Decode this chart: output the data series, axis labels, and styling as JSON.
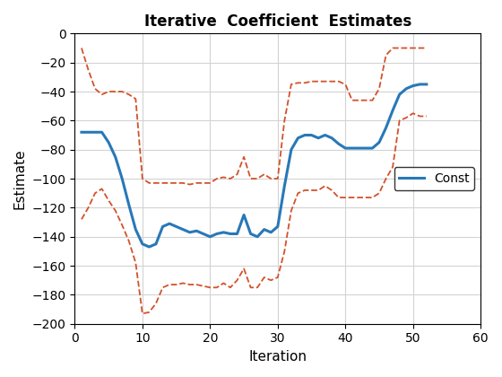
{
  "title": "Iterative  Coefficient  Estimates",
  "xlabel": "Iteration",
  "ylabel": "Estimate",
  "xlim": [
    0,
    60
  ],
  "ylim": [
    -200,
    0
  ],
  "xticks": [
    0,
    10,
    20,
    30,
    40,
    50,
    60
  ],
  "yticks": [
    0,
    -20,
    -40,
    -60,
    -80,
    -100,
    -120,
    -140,
    -160,
    -180,
    -200
  ],
  "main_color": "#2878b8",
  "ci_color": "#d2522a",
  "legend_label": "Const",
  "main_x": [
    1,
    2,
    3,
    4,
    5,
    6,
    7,
    8,
    9,
    10,
    11,
    12,
    13,
    14,
    15,
    16,
    17,
    18,
    19,
    20,
    21,
    22,
    23,
    24,
    25,
    26,
    27,
    28,
    29,
    30,
    31,
    32,
    33,
    34,
    35,
    36,
    37,
    38,
    39,
    40,
    41,
    42,
    43,
    44,
    45,
    46,
    47,
    48,
    49,
    50,
    51,
    52
  ],
  "main_y": [
    -68,
    -68,
    -68,
    -68,
    -75,
    -85,
    -100,
    -118,
    -135,
    -145,
    -147,
    -145,
    -133,
    -131,
    -133,
    -135,
    -137,
    -136,
    -138,
    -140,
    -138,
    -137,
    -138,
    -138,
    -125,
    -138,
    -140,
    -135,
    -137,
    -133,
    -105,
    -80,
    -72,
    -70,
    -70,
    -72,
    -70,
    -72,
    -76,
    -79,
    -79,
    -79,
    -79,
    -79,
    -75,
    -65,
    -53,
    -42,
    -38,
    -36,
    -35,
    -35
  ],
  "upper_x": [
    1,
    2,
    3,
    4,
    5,
    6,
    7,
    8,
    9,
    10,
    11,
    12,
    13,
    14,
    15,
    16,
    17,
    18,
    19,
    20,
    21,
    22,
    23,
    24,
    25,
    26,
    27,
    28,
    29,
    30,
    31,
    32,
    33,
    34,
    35,
    36,
    37,
    38,
    39,
    40,
    41,
    42,
    43,
    44,
    45,
    46,
    47,
    48,
    49,
    50,
    51,
    52
  ],
  "upper_y": [
    -10,
    -25,
    -38,
    -42,
    -40,
    -40,
    -40,
    -42,
    -45,
    -100,
    -103,
    -103,
    -103,
    -103,
    -103,
    -103,
    -104,
    -103,
    -103,
    -103,
    -100,
    -99,
    -100,
    -97,
    -85,
    -100,
    -100,
    -97,
    -100,
    -100,
    -60,
    -35,
    -34,
    -34,
    -33,
    -33,
    -33,
    -33,
    -33,
    -35,
    -46,
    -46,
    -46,
    -46,
    -38,
    -15,
    -10,
    -10,
    -10,
    -10,
    -10,
    -10
  ],
  "lower_x": [
    1,
    2,
    3,
    4,
    5,
    6,
    7,
    8,
    9,
    10,
    11,
    12,
    13,
    14,
    15,
    16,
    17,
    18,
    19,
    20,
    21,
    22,
    23,
    24,
    25,
    26,
    27,
    28,
    29,
    30,
    31,
    32,
    33,
    34,
    35,
    36,
    37,
    38,
    39,
    40,
    41,
    42,
    43,
    44,
    45,
    46,
    47,
    48,
    49,
    50,
    51,
    52
  ],
  "lower_y": [
    -128,
    -120,
    -110,
    -107,
    -115,
    -122,
    -132,
    -143,
    -158,
    -193,
    -192,
    -186,
    -175,
    -173,
    -173,
    -172,
    -173,
    -173,
    -174,
    -175,
    -175,
    -172,
    -175,
    -170,
    -162,
    -175,
    -175,
    -168,
    -170,
    -168,
    -150,
    -122,
    -110,
    -108,
    -108,
    -108,
    -105,
    -108,
    -113,
    -113,
    -113,
    -113,
    -113,
    -113,
    -110,
    -100,
    -92,
    -60,
    -58,
    -55,
    -57,
    -57
  ]
}
